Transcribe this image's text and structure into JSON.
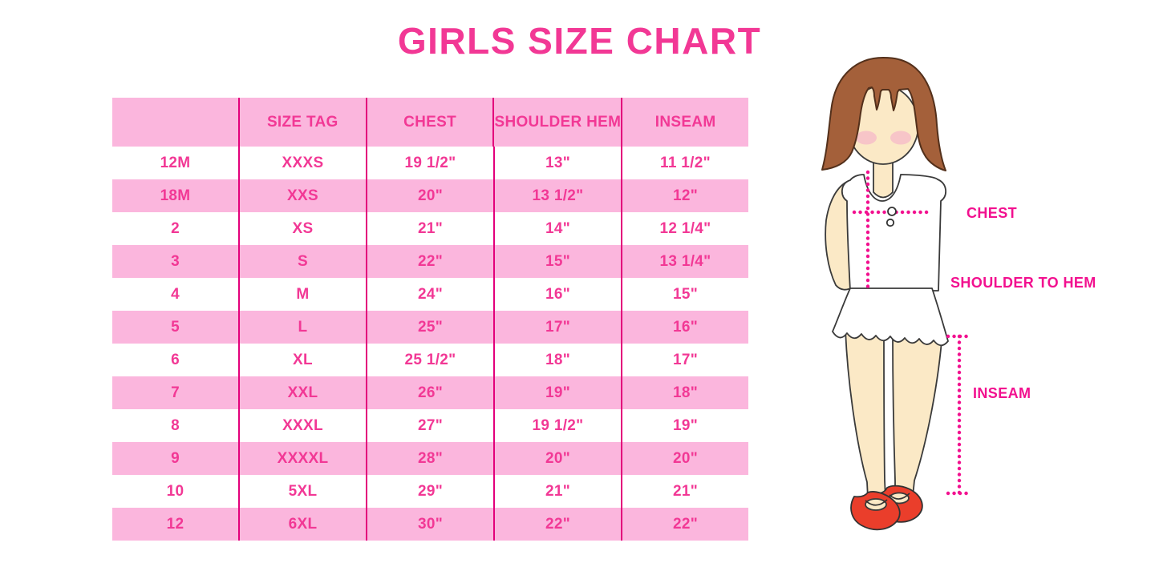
{
  "title": "GIRLS SIZE CHART",
  "colors": {
    "text_pink": "#F23895",
    "row_pink": "#FBB6DD",
    "divider_pink": "#E3007B",
    "label_pink": "#F2108F",
    "hair_brown": "#A4603A",
    "hair_outline": "#53301B",
    "skin": "#FBE9C6",
    "blush": "#F6BCC8",
    "shoe_red": "#EA3E2B",
    "outline": "#3A3A3A"
  },
  "chart_data": {
    "type": "table",
    "title": "GIRLS SIZE CHART",
    "columns": [
      "",
      "SIZE TAG",
      "CHEST",
      "SHOULDER HEM",
      "INSEAM"
    ],
    "rows": [
      [
        "12M",
        "XXXS",
        "19 1/2\"",
        "13\"",
        "11 1/2\""
      ],
      [
        "18M",
        "XXS",
        "20\"",
        "13 1/2\"",
        "12\""
      ],
      [
        "2",
        "XS",
        "21\"",
        "14\"",
        "12 1/4\""
      ],
      [
        "3",
        "S",
        "22\"",
        "15\"",
        "13 1/4\""
      ],
      [
        "4",
        "M",
        "24\"",
        "16\"",
        "15\""
      ],
      [
        "5",
        "L",
        "25\"",
        "17\"",
        "16\""
      ],
      [
        "6",
        "XL",
        "25 1/2\"",
        "18\"",
        "17\""
      ],
      [
        "7",
        "XXL",
        "26\"",
        "19\"",
        "18\""
      ],
      [
        "8",
        "XXXL",
        "27\"",
        "19 1/2\"",
        "19\""
      ],
      [
        "9",
        "XXXXL",
        "28\"",
        "20\"",
        "20\""
      ],
      [
        "10",
        "5XL",
        "29\"",
        "21\"",
        "21\""
      ],
      [
        "12",
        "6XL",
        "30\"",
        "22\"",
        "22\""
      ]
    ],
    "layout_hints": {
      "header_background": "pink",
      "row_striping": "white/pink alternating starting white",
      "column_dividers": "magenta vertical lines"
    }
  },
  "figure": {
    "labels": {
      "chest": "CHEST",
      "shoulder_to_hem": "SHOULDER TO HEM",
      "inseam": "INSEAM"
    }
  }
}
